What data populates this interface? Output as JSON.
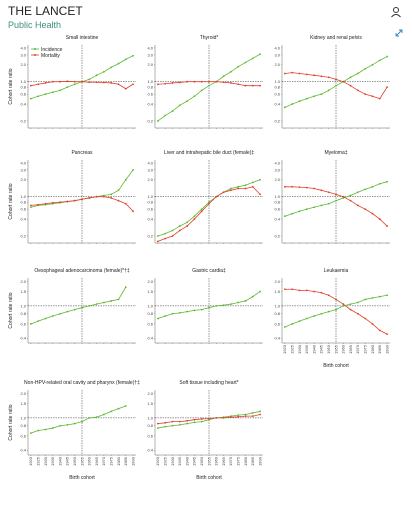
{
  "header": {
    "title": "THE LANCET",
    "subtitle": "Public Health"
  },
  "chart_data": {
    "type": "line",
    "log_y": true,
    "ref_x": 1955,
    "ref_y": 1,
    "xlabel": "Birth cohort",
    "ylabel": "Cohort rate ratio",
    "x": [
      1920,
      1925,
      1930,
      1935,
      1940,
      1945,
      1950,
      1955,
      1960,
      1965,
      1970,
      1975,
      1980,
      1985,
      1990
    ],
    "xlim": [
      1918,
      1992
    ],
    "xticks": [
      1920,
      1925,
      1930,
      1935,
      1940,
      1945,
      1950,
      1955,
      1960,
      1965,
      1970,
      1975,
      1980,
      1985,
      1990
    ],
    "series_styles": [
      {
        "name": "Incidence",
        "color": "#5cb82f"
      },
      {
        "name": "Mortality",
        "color": "#e0412c"
      }
    ],
    "panels": [
      {
        "title": "Small intestine",
        "ylim": [
          0.15,
          4.5
        ],
        "yticks": [
          0.2,
          0.4,
          0.6,
          0.8,
          {
            "value": 1,
            "label": "1.0"
          },
          {
            "value": 2,
            "label": "2.0"
          },
          {
            "value": 3,
            "label": "3.0"
          },
          {
            "value": 4,
            "label": "4.0"
          }
        ],
        "incidence": [
          0.5,
          0.55,
          0.6,
          0.65,
          0.7,
          0.8,
          0.9,
          1.0,
          1.1,
          1.3,
          1.5,
          1.8,
          2.1,
          2.5,
          2.9
        ],
        "mortality": [
          0.85,
          0.9,
          0.95,
          1.0,
          1.0,
          1.02,
          1.0,
          1.0,
          0.98,
          0.98,
          0.97,
          0.95,
          0.9,
          0.75,
          0.9
        ]
      },
      {
        "title": "Thyroid*",
        "ylim": [
          0.15,
          4.5
        ],
        "yticks": [
          0.2,
          0.4,
          0.6,
          0.8,
          {
            "value": 1,
            "label": "1.0"
          },
          {
            "value": 2,
            "label": "2.0"
          },
          {
            "value": 3,
            "label": "3.0"
          },
          {
            "value": 4,
            "label": "4.0"
          }
        ],
        "incidence": [
          0.2,
          0.25,
          0.3,
          0.38,
          0.45,
          0.55,
          0.7,
          0.85,
          1.0,
          1.25,
          1.5,
          1.85,
          2.2,
          2.6,
          3.1
        ],
        "mortality": [
          0.9,
          0.92,
          0.95,
          0.97,
          1.0,
          1.0,
          1.0,
          1.0,
          1.0,
          0.98,
          0.95,
          0.9,
          0.85,
          0.85,
          0.85
        ]
      },
      {
        "title": "Kidney and renal pelvis",
        "ylim": [
          0.15,
          4.5
        ],
        "yticks": [
          0.2,
          0.4,
          0.6,
          0.8,
          {
            "value": 1,
            "label": "1.0"
          },
          {
            "value": 2,
            "label": "2.0"
          },
          {
            "value": 3,
            "label": "3.0"
          },
          {
            "value": 4,
            "label": "4.0"
          }
        ],
        "incidence": [
          0.35,
          0.4,
          0.45,
          0.5,
          0.55,
          0.6,
          0.7,
          0.85,
          1.0,
          1.2,
          1.4,
          1.7,
          2.0,
          2.4,
          2.8
        ],
        "mortality": [
          1.4,
          1.45,
          1.4,
          1.35,
          1.3,
          1.25,
          1.2,
          1.1,
          1.0,
          0.85,
          0.7,
          0.6,
          0.55,
          0.5,
          0.8
        ]
      },
      {
        "title": "Pancreas",
        "ylim": [
          0.15,
          4.5
        ],
        "yticks": [
          0.2,
          0.4,
          0.6,
          0.8,
          {
            "value": 1,
            "label": "1.0"
          },
          {
            "value": 2,
            "label": "2.0"
          },
          {
            "value": 3,
            "label": "3.0"
          },
          {
            "value": 4,
            "label": "4.0"
          }
        ],
        "incidence": [
          0.65,
          0.7,
          0.72,
          0.75,
          0.78,
          0.82,
          0.85,
          0.9,
          0.95,
          1.0,
          1.05,
          1.1,
          1.3,
          2.0,
          3.0
        ],
        "mortality": [
          0.7,
          0.72,
          0.75,
          0.78,
          0.8,
          0.82,
          0.85,
          0.9,
          0.95,
          1.0,
          1.0,
          0.95,
          0.85,
          0.75,
          0.55
        ]
      },
      {
        "title": "Liver and intrahepatic bile duct (female)‡",
        "ylim": [
          0.15,
          4.5
        ],
        "yticks": [
          0.2,
          0.4,
          0.6,
          0.8,
          {
            "value": 1,
            "label": "1.0"
          },
          {
            "value": 2,
            "label": "2.0"
          },
          {
            "value": 3,
            "label": "3.0"
          },
          {
            "value": 4,
            "label": "4.0"
          }
        ],
        "incidence": [
          0.2,
          0.22,
          0.25,
          0.3,
          0.35,
          0.45,
          0.6,
          0.8,
          1.0,
          1.2,
          1.4,
          1.5,
          1.6,
          1.8,
          2.0
        ],
        "mortality": [
          0.16,
          0.18,
          0.2,
          0.25,
          0.3,
          0.4,
          0.55,
          0.75,
          1.0,
          1.2,
          1.3,
          1.4,
          1.4,
          1.5,
          1.1
        ]
      },
      {
        "title": "Myeloma‡",
        "ylim": [
          0.15,
          4.5
        ],
        "yticks": [
          0.2,
          0.4,
          0.6,
          0.8,
          {
            "value": 1,
            "label": "1.0"
          },
          {
            "value": 2,
            "label": "2.0"
          },
          {
            "value": 3,
            "label": "3.0"
          },
          {
            "value": 4,
            "label": "4.0"
          }
        ],
        "incidence": [
          0.45,
          0.5,
          0.55,
          0.6,
          0.65,
          0.7,
          0.75,
          0.85,
          0.95,
          1.05,
          1.2,
          1.35,
          1.5,
          1.7,
          1.85
        ],
        "mortality": [
          1.5,
          1.5,
          1.48,
          1.45,
          1.4,
          1.3,
          1.2,
          1.1,
          1.0,
          0.85,
          0.7,
          0.6,
          0.5,
          0.4,
          0.3
        ]
      },
      {
        "title": "Oesophageal adenocarcinoma (female)*†‡",
        "ylim": [
          0.35,
          2.2
        ],
        "yticks": [
          0.4,
          0.6,
          0.8,
          {
            "value": 1,
            "label": "1.0"
          },
          1.5,
          {
            "value": 2,
            "label": "2.0"
          }
        ],
        "incidence": [
          0.6,
          0.65,
          0.7,
          0.75,
          0.8,
          0.85,
          0.9,
          0.95,
          1.0,
          1.05,
          1.1,
          1.15,
          1.2,
          1.7,
          null
        ]
      },
      {
        "title": "Gastric cardia‡",
        "ylim": [
          0.35,
          2.2
        ],
        "yticks": [
          0.4,
          0.6,
          0.8,
          {
            "value": 1,
            "label": "1.0"
          },
          1.5,
          {
            "value": 2,
            "label": "2.0"
          }
        ],
        "incidence": [
          0.7,
          0.75,
          0.8,
          0.82,
          0.85,
          0.88,
          0.9,
          0.95,
          1.0,
          1.02,
          1.05,
          1.1,
          1.15,
          1.3,
          1.5
        ]
      },
      {
        "title": "Leukaemia",
        "ylim": [
          0.35,
          2.2
        ],
        "yticks": [
          0.4,
          0.6,
          0.8,
          {
            "value": 1,
            "label": "1.0"
          },
          1.5,
          {
            "value": 2,
            "label": "2.0"
          }
        ],
        "incidence": [
          0.55,
          0.6,
          0.65,
          0.7,
          0.75,
          0.8,
          0.85,
          0.9,
          1.0,
          1.05,
          1.1,
          1.2,
          1.25,
          1.3,
          1.35
        ],
        "mortality": [
          1.6,
          1.6,
          1.55,
          1.55,
          1.5,
          1.45,
          1.35,
          1.2,
          1.05,
          0.9,
          0.8,
          0.7,
          0.6,
          0.5,
          0.45
        ]
      },
      {
        "title": "Non-HPV-related oral cavity and pharynx (female)†‡",
        "ylim": [
          0.35,
          2.2
        ],
        "yticks": [
          0.4,
          0.6,
          0.8,
          {
            "value": 1,
            "label": "1.0"
          },
          1.5,
          {
            "value": 2,
            "label": "2.0"
          }
        ],
        "incidence": [
          0.65,
          0.7,
          0.72,
          0.75,
          0.8,
          0.82,
          0.85,
          0.9,
          1.0,
          1.02,
          1.1,
          1.2,
          1.3,
          1.4,
          null
        ]
      },
      {
        "title": "Soft tissue including heart*",
        "ylim": [
          0.35,
          2.2
        ],
        "yticks": [
          0.4,
          0.6,
          0.8,
          {
            "value": 1,
            "label": "1.0"
          },
          1.5,
          {
            "value": 2,
            "label": "2.0"
          }
        ],
        "incidence": [
          0.75,
          0.78,
          0.8,
          0.82,
          0.85,
          0.88,
          0.9,
          0.95,
          1.0,
          1.02,
          1.05,
          1.08,
          1.1,
          1.15,
          1.2
        ],
        "mortality": [
          0.85,
          0.87,
          0.9,
          0.9,
          0.92,
          0.95,
          0.97,
          0.98,
          1.0,
          1.0,
          1.02,
          1.03,
          1.05,
          1.05,
          1.1
        ]
      }
    ]
  }
}
